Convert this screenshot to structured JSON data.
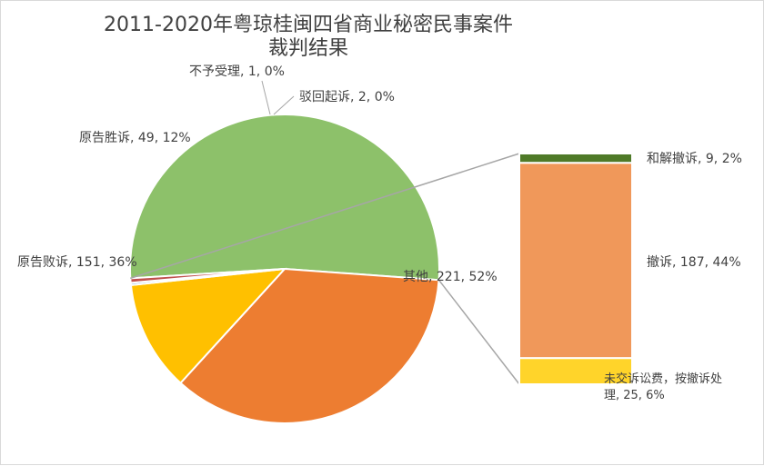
{
  "chart_data": {
    "type": "pie",
    "title_line1": "2011-2020年粤琼桂闽四省商业秘密民事案件",
    "title_line2": "裁判结果",
    "pie": [
      {
        "label": "其他",
        "value": 221,
        "percent": "52%",
        "color": "#8dc16a"
      },
      {
        "label": "原告败诉",
        "value": 151,
        "percent": "36%",
        "color": "#ed7d31"
      },
      {
        "label": "原告胜诉",
        "value": 49,
        "percent": "12%",
        "color": "#ffc000"
      },
      {
        "label": "不予受理",
        "value": 1,
        "percent": "0%",
        "color": "#5b9bd5"
      },
      {
        "label": "驳回起诉",
        "value": 2,
        "percent": "0%",
        "color": "#c0504d"
      }
    ],
    "breakdown_of": "其他",
    "breakdown": [
      {
        "label": "和解撤诉",
        "value": 9,
        "percent": "2%",
        "color": "#4f7a28"
      },
      {
        "label": "撤诉",
        "value": 187,
        "percent": "44%",
        "color": "#f0985a"
      },
      {
        "label": "未交诉讼费，按撤诉处理",
        "value": 25,
        "percent": "6%",
        "color": "#ffd42a"
      }
    ],
    "labels": {
      "其他": "其他, 221, 52%",
      "原告败诉": "原告败诉, 151, 36%",
      "原告胜诉": "原告胜诉, 49, 12%",
      "不予受理": "不予受理, 1, 0%",
      "驳回起诉": "驳回起诉, 2, 0%",
      "和解撤诉": "和解撤诉, 9, 2%",
      "撤诉": "撤诉, 187, 44%",
      "未交诉讼费_line1": "未交诉讼费，按撤诉处",
      "未交诉讼费_line2": "理, 25, 6%"
    }
  }
}
